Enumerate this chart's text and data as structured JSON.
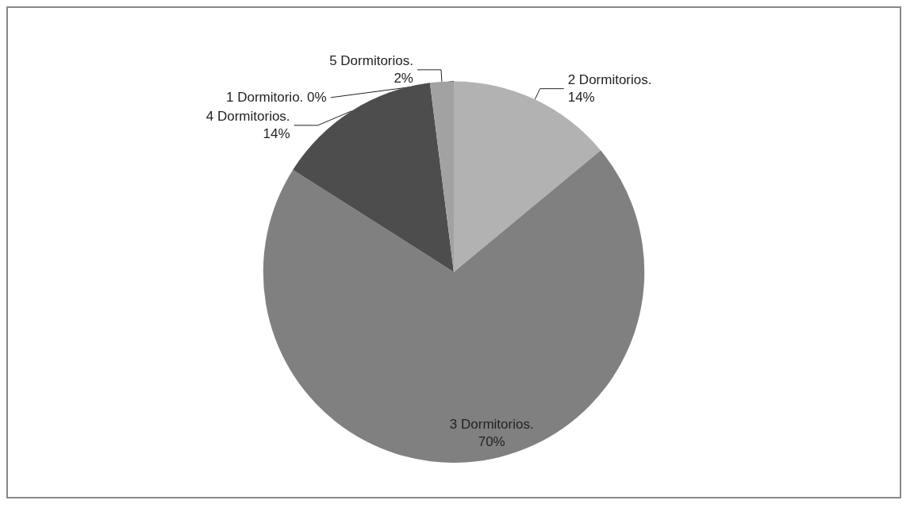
{
  "chart_data": {
    "type": "pie",
    "categories": [
      "1 Dormitorio.",
      "2 Dormitorios.",
      "3 Dormitorios.",
      "4 Dormitorios.",
      "5 Dormitorios."
    ],
    "values": [
      0,
      14,
      70,
      14,
      2
    ],
    "colors": [
      "#5a5a5a",
      "#b2b2b2",
      "#808080",
      "#4d4d4d",
      "#a2a2a2"
    ],
    "value_labels": [
      "0%",
      "14%",
      "70%",
      "14%",
      "2%"
    ],
    "legend": false
  }
}
